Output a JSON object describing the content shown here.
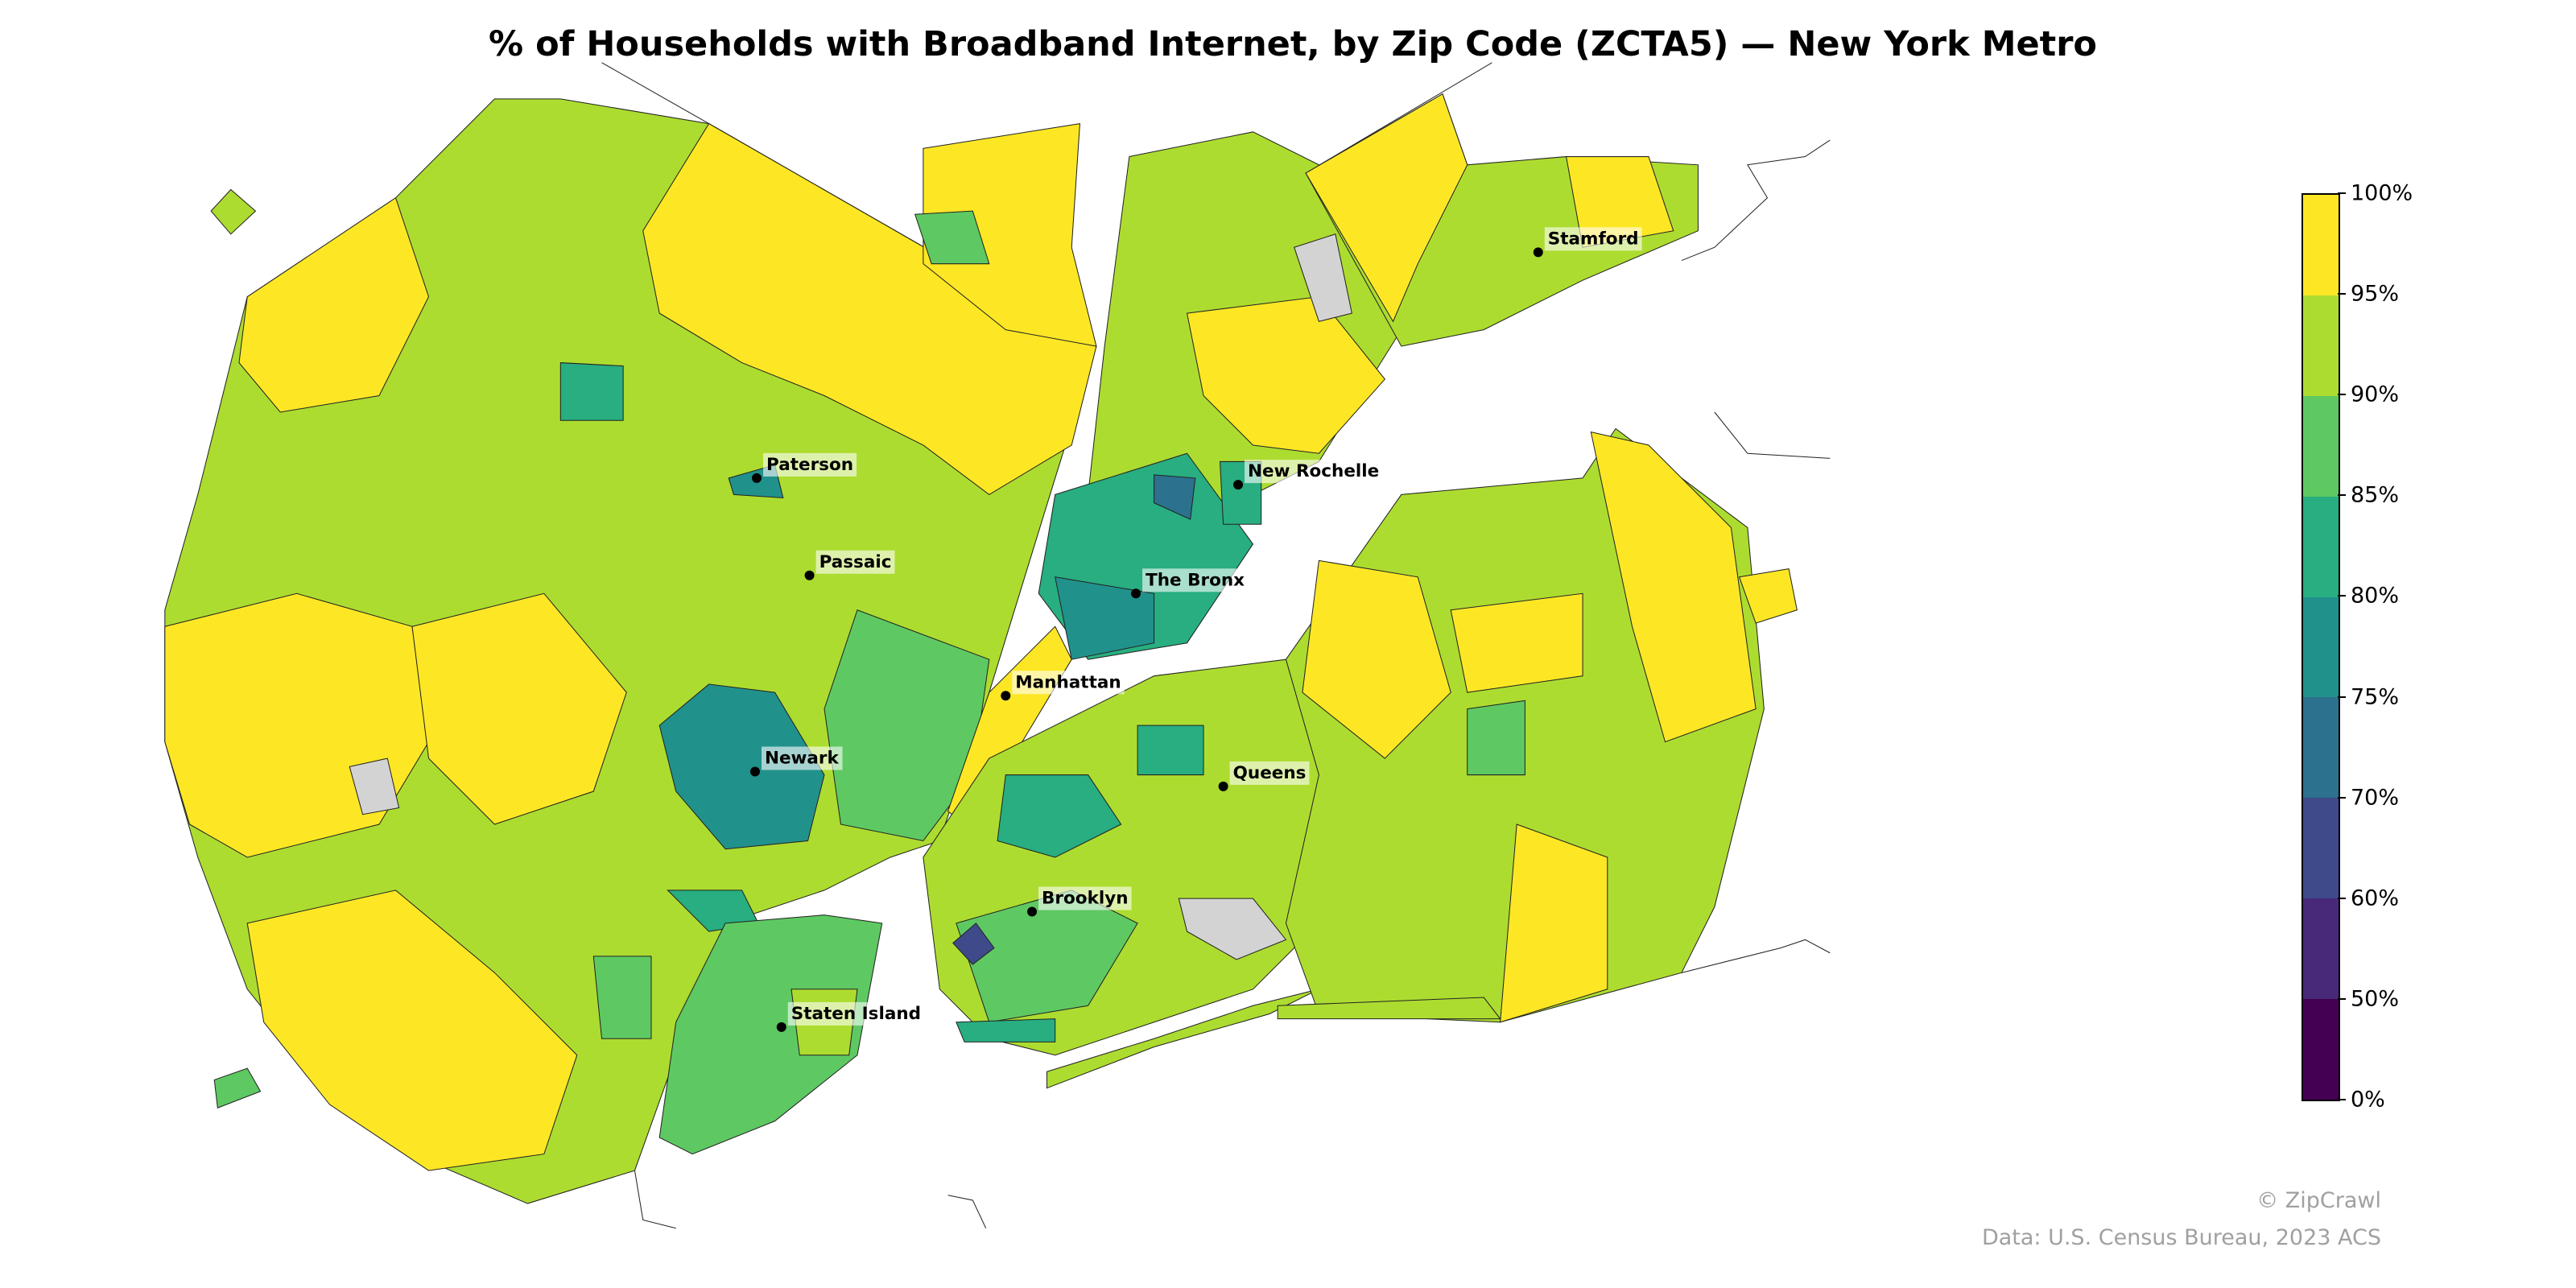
{
  "title": "% of Households with Broadband Internet, by Zip Code (ZCTA5) — New York Metro",
  "colors": {
    "no_data": "#d3d3d3",
    "bins": [
      "#440154",
      "#482878",
      "#3e4a89",
      "#2c718e",
      "#21918c",
      "#28ae80",
      "#5ec962",
      "#addc30",
      "#fde725"
    ]
  },
  "colorbar": {
    "ticks": [
      "0%",
      "50%",
      "60%",
      "70%",
      "75%",
      "80%",
      "85%",
      "90%",
      "95%",
      "100%"
    ]
  },
  "cities": [
    {
      "name": "Stamford"
    },
    {
      "name": "Paterson"
    },
    {
      "name": "New Rochelle"
    },
    {
      "name": "Passaic"
    },
    {
      "name": "The Bronx"
    },
    {
      "name": "Manhattan"
    },
    {
      "name": "Newark"
    },
    {
      "name": "Queens"
    },
    {
      "name": "Brooklyn"
    },
    {
      "name": "Staten Island"
    }
  ],
  "credits": {
    "copyright": "© ZipCrawl",
    "source": "Data: U.S. Census Bureau, 2023 ACS"
  }
}
